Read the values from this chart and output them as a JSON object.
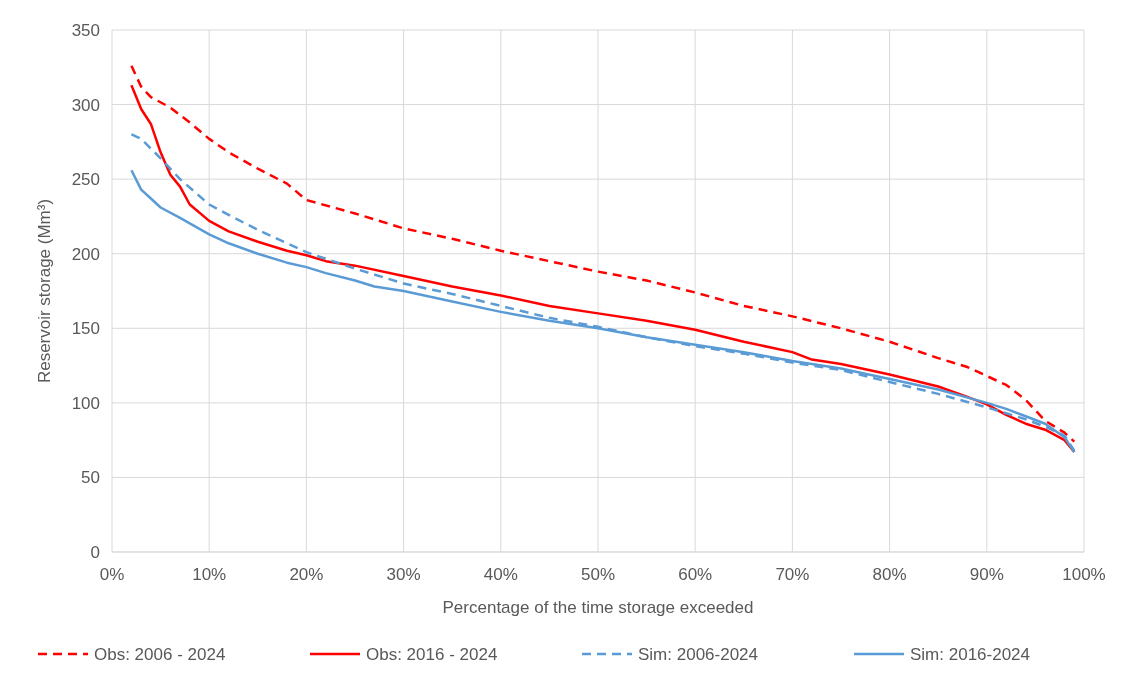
{
  "chart_data": {
    "type": "line",
    "xlabel": "Percentage of the time storage exceeded",
    "ylabel": "Reservoir storage (Mm³)",
    "xlim": [
      0,
      100
    ],
    "xticks": [
      {
        "value": 0,
        "label": "0%"
      },
      {
        "value": 10,
        "label": "10%"
      },
      {
        "value": 20,
        "label": "20%"
      },
      {
        "value": 30,
        "label": "30%"
      },
      {
        "value": 40,
        "label": "40%"
      },
      {
        "value": 50,
        "label": "50%"
      },
      {
        "value": 60,
        "label": "60%"
      },
      {
        "value": 70,
        "label": "70%"
      },
      {
        "value": 80,
        "label": "80%"
      },
      {
        "value": 90,
        "label": "90%"
      },
      {
        "value": 100,
        "label": "100%"
      }
    ],
    "ylim": [
      0,
      350
    ],
    "yticks": [
      0,
      50,
      100,
      150,
      200,
      250,
      300,
      350
    ],
    "grid": true,
    "legend": "bottom",
    "marker": "none",
    "series": [
      {
        "name": "Obs: 2006 - 2024",
        "color": "#ff0000",
        "line_style": "dashed",
        "x": [
          2,
          3,
          4,
          6,
          8,
          10,
          12,
          15,
          18,
          20,
          25,
          30,
          35,
          40,
          45,
          50,
          55,
          60,
          65,
          70,
          75,
          80,
          85,
          88,
          90,
          92,
          94,
          96,
          98,
          99
        ],
        "values": [
          326,
          312,
          305,
          298,
          288,
          277,
          268,
          257,
          247,
          236,
          227,
          217,
          210,
          202,
          195,
          188,
          182,
          174,
          165,
          158,
          150,
          141,
          130,
          124,
          118,
          112,
          102,
          88,
          80,
          74
        ]
      },
      {
        "name": "Obs: 2016 - 2024",
        "color": "#ff0000",
        "line_style": "solid",
        "x": [
          2,
          3,
          4,
          5,
          6,
          7,
          8,
          10,
          12,
          15,
          18,
          20,
          22,
          25,
          30,
          35,
          40,
          45,
          50,
          55,
          60,
          65,
          70,
          72,
          75,
          80,
          85,
          88,
          90,
          92,
          94,
          96,
          98,
          99
        ],
        "values": [
          313,
          297,
          287,
          268,
          253,
          245,
          233,
          222,
          215,
          208,
          202,
          199,
          195,
          192,
          185,
          178,
          172,
          165,
          160,
          155,
          149,
          141,
          134,
          129,
          126,
          119,
          111,
          104,
          99,
          92,
          86,
          82,
          75,
          67
        ]
      },
      {
        "name": "Sim: 2006-2024",
        "color": "#5b9bd5",
        "line_style": "dashed",
        "x": [
          2,
          3,
          5,
          7,
          10,
          12,
          15,
          18,
          20,
          25,
          30,
          35,
          40,
          45,
          50,
          55,
          60,
          65,
          70,
          75,
          80,
          85,
          90,
          92,
          94,
          96,
          98,
          99
        ],
        "values": [
          280,
          277,
          264,
          250,
          233,
          226,
          216,
          207,
          201,
          190,
          180,
          173,
          165,
          157,
          151,
          144,
          138,
          133,
          127,
          122,
          114,
          106,
          97,
          93,
          89,
          84,
          78,
          68
        ]
      },
      {
        "name": "Sim: 2016-2024",
        "color": "#5b9bd5",
        "line_style": "solid",
        "x": [
          2,
          3,
          4,
          5,
          7,
          10,
          12,
          15,
          18,
          20,
          22,
          25,
          27,
          30,
          35,
          40,
          45,
          50,
          55,
          60,
          65,
          70,
          75,
          80,
          85,
          90,
          92,
          94,
          96,
          98,
          99
        ],
        "values": [
          256,
          243,
          237,
          231,
          224,
          213,
          207,
          200,
          194,
          191,
          187,
          182,
          178,
          175,
          168,
          161,
          155,
          150,
          144,
          139,
          134,
          128,
          123,
          116,
          109,
          100,
          96,
          91,
          86,
          77,
          67
        ]
      }
    ]
  }
}
